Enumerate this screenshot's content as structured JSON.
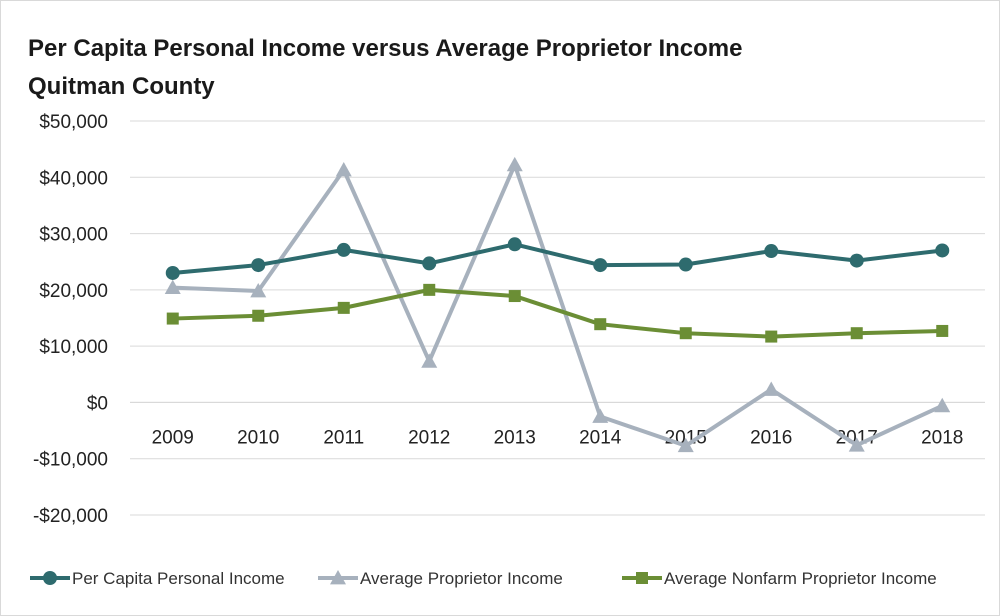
{
  "chart_data": {
    "type": "line",
    "title": "Per Capita Personal Income versus Average Proprietor Income",
    "subtitle": "Quitman County",
    "xlabel": "",
    "ylabel": "",
    "categories": [
      "2009",
      "2010",
      "2011",
      "2012",
      "2013",
      "2014",
      "2015",
      "2016",
      "2017",
      "2018"
    ],
    "ylim": [
      -20000,
      50000
    ],
    "yticks": [
      -20000,
      -10000,
      0,
      10000,
      20000,
      30000,
      40000,
      50000
    ],
    "ytick_labels": [
      "-$20,000",
      "-$10,000",
      "$0",
      "$10,000",
      "$20,000",
      "$30,000",
      "$40,000",
      "$50,000"
    ],
    "grid": true,
    "legend_position": "bottom",
    "series": [
      {
        "name": "Per Capita Personal Income",
        "color": "#2e6b6e",
        "marker": "circle",
        "values": [
          23000,
          24400,
          27100,
          24700,
          28100,
          24400,
          24500,
          26900,
          25200,
          27000
        ]
      },
      {
        "name": "Average Proprietor Income",
        "color": "#a7b1bd",
        "marker": "triangle",
        "values": [
          20400,
          19800,
          41300,
          7300,
          42200,
          -2500,
          -7700,
          2300,
          -7600,
          -600
        ]
      },
      {
        "name": "Average Nonfarm Proprietor Income",
        "color": "#6b8e35",
        "marker": "square",
        "values": [
          14900,
          15400,
          16800,
          20000,
          18900,
          13900,
          12300,
          11700,
          12300,
          12700
        ]
      }
    ]
  }
}
